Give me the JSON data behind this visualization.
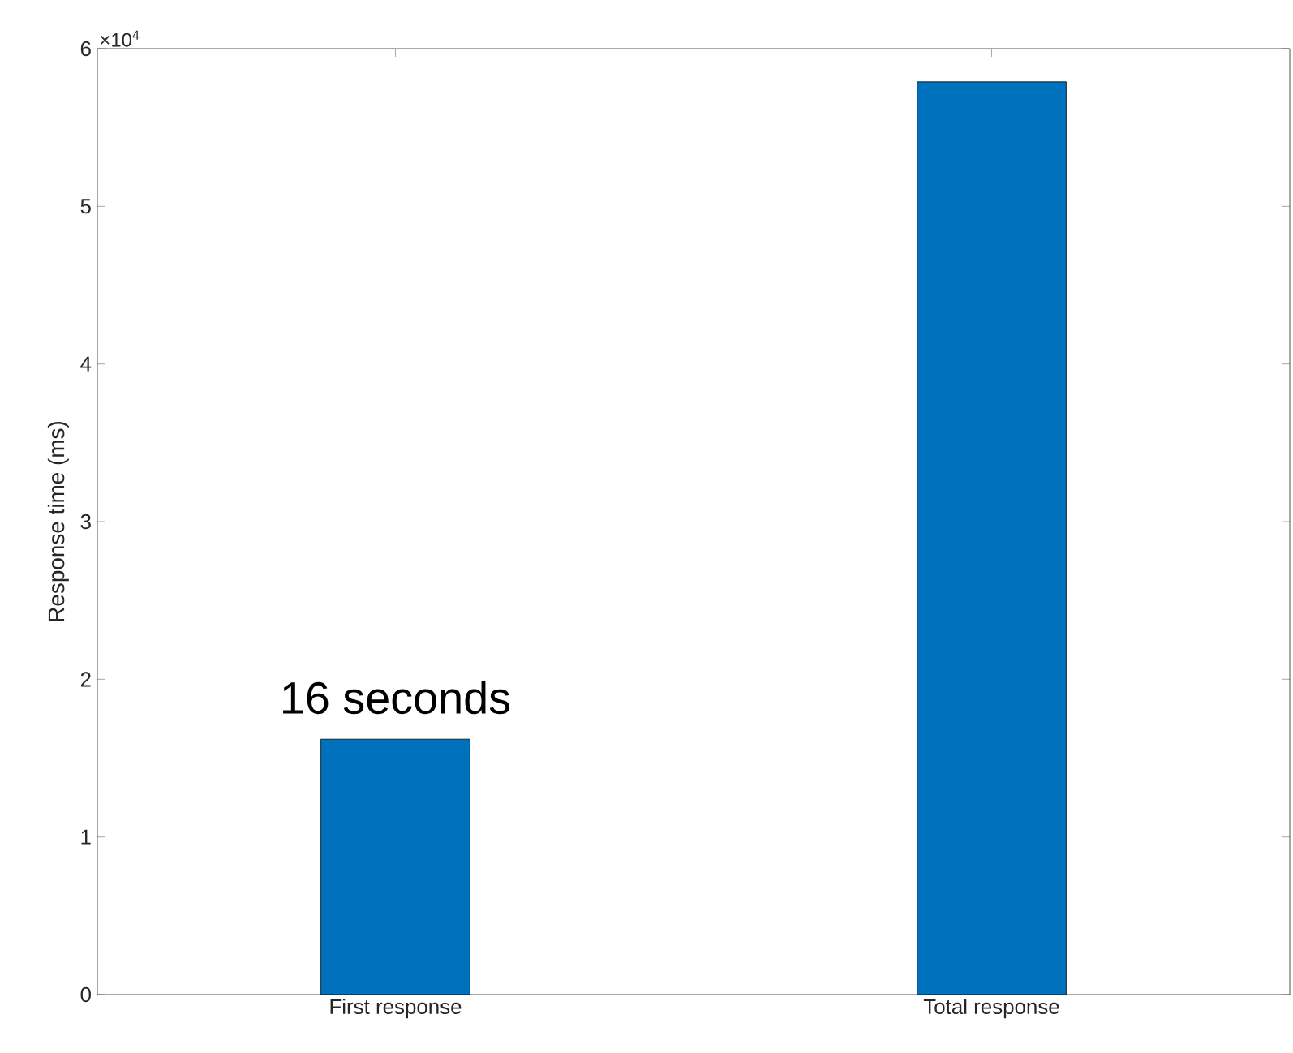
{
  "chart_data": {
    "type": "bar",
    "ylabel": "Response time (ms)",
    "categories": [
      "First response",
      "Total response"
    ],
    "values": [
      1.62,
      5.79
    ],
    "color": "#0072bd",
    "ylim": [
      0,
      6
    ],
    "yticks": [
      0,
      1,
      2,
      3,
      4,
      5,
      6
    ],
    "annotations": [
      "×10$^{4}$",
      "16 seconds"
    ]
  }
}
